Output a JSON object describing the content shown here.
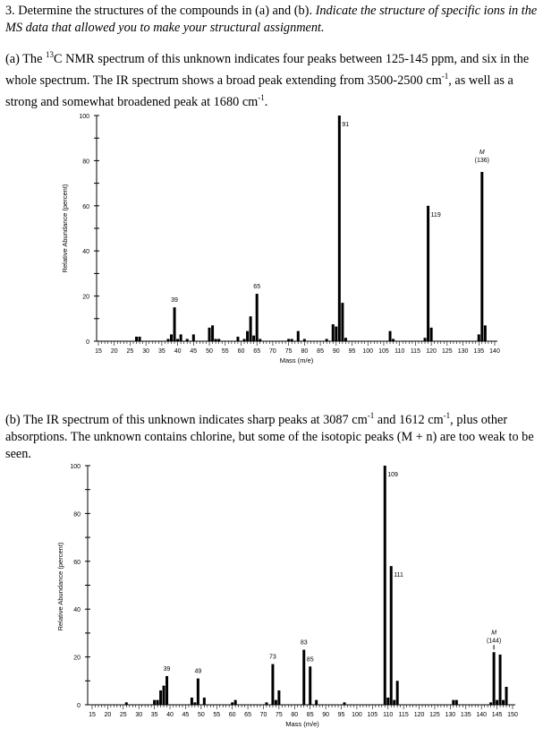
{
  "question": {
    "intro": "3. Determine the structures of the compounds in (a) and (b). ",
    "intro_italic": "Indicate the structure of specific ions in the MS data that allowed you to make your structural assignment."
  },
  "part_a": {
    "text_1": "(a) The ",
    "sup_13": "13",
    "text_2": "C NMR spectrum of this unknown indicates four peaks between 125-145 ppm, and six in the whole spectrum. The IR spectrum shows a broad peak extending from 3500-2500 cm",
    "sup_neg1": "-1",
    "text_3": ", as well as a strong and somewhat broadened peak at 1680 cm",
    "text_4": "."
  },
  "part_b": {
    "text_1": "(b) The IR spectrum of this unknown indicates sharp peaks at 3087 cm",
    "sup_neg1": "-1",
    "text_2": " and 1612 cm",
    "text_3": ", plus other absorptions. The unknown contains chlorine, but some of the isotopic peaks (M + n) are too weak to be seen."
  },
  "chart_data": [
    {
      "type": "bar",
      "xlabel": "Mass (m/e)",
      "ylabel": "Relative Abundance (percent)",
      "xlim": [
        15,
        140
      ],
      "ylim": [
        0,
        100
      ],
      "yticks": [
        0,
        20,
        40,
        60,
        80,
        100
      ],
      "xticks": [
        15,
        20,
        25,
        30,
        35,
        40,
        45,
        50,
        55,
        60,
        65,
        70,
        75,
        80,
        85,
        90,
        95,
        100,
        105,
        110,
        115,
        120,
        125,
        130,
        135,
        140
      ],
      "x": [
        27,
        28,
        37,
        38,
        39,
        40,
        41,
        43,
        45,
        50,
        51,
        52,
        53,
        59,
        61,
        62,
        63,
        64,
        65,
        66,
        75,
        76,
        78,
        80,
        87,
        89,
        90,
        91,
        92,
        93,
        107,
        108,
        118,
        119,
        120,
        135,
        136,
        137
      ],
      "values": [
        2,
        2,
        1,
        3,
        15,
        1,
        3,
        1,
        3,
        6,
        7,
        1,
        1,
        2,
        1,
        4.5,
        11,
        2.5,
        21,
        1,
        1,
        1,
        4.5,
        1,
        1,
        7.5,
        6.5,
        100,
        17,
        1.5,
        4.5,
        1,
        1.5,
        60,
        6,
        3,
        75,
        7
      ],
      "annotations": [
        {
          "x": 39,
          "text": "39"
        },
        {
          "x": 65,
          "text": "65"
        },
        {
          "x": 91,
          "text": "91"
        },
        {
          "x": 119,
          "text": "119"
        },
        {
          "x": 136,
          "text": "M",
          "text2": "(136)"
        }
      ]
    },
    {
      "type": "bar",
      "xlabel": "Mass (m/e)",
      "ylabel": "Relative Abundance (percent)",
      "xlim": [
        15,
        150
      ],
      "ylim": [
        0,
        100
      ],
      "yticks": [
        0,
        20,
        40,
        60,
        80,
        100
      ],
      "xticks": [
        15,
        20,
        25,
        30,
        35,
        40,
        45,
        50,
        55,
        60,
        65,
        70,
        75,
        80,
        85,
        90,
        95,
        100,
        105,
        110,
        115,
        120,
        125,
        130,
        135,
        140,
        145,
        150
      ],
      "x": [
        26,
        35,
        36,
        37,
        38,
        39,
        47,
        48,
        49,
        51,
        60,
        61,
        71,
        73,
        74,
        75,
        83,
        85,
        87,
        96,
        109,
        110,
        111,
        112,
        113,
        131,
        132,
        143,
        144,
        145,
        146,
        147,
        148
      ],
      "values": [
        1,
        2,
        2,
        6,
        8,
        12,
        3,
        1,
        11,
        3,
        1,
        2,
        1,
        17,
        2,
        6,
        23,
        16,
        2,
        1,
        100,
        3,
        58,
        2,
        10,
        2,
        2,
        1,
        22,
        2,
        21,
        2,
        7.5
      ],
      "annotations": [
        {
          "x": 39,
          "text": "39"
        },
        {
          "x": 49,
          "text": "49"
        },
        {
          "x": 73,
          "text": "73"
        },
        {
          "x": 83,
          "text": "83"
        },
        {
          "x": 85,
          "text": "85"
        },
        {
          "x": 109,
          "text": "109"
        },
        {
          "x": 111,
          "text": "111"
        },
        {
          "x": 144,
          "text": "M",
          "text2": "(144)"
        }
      ]
    }
  ]
}
